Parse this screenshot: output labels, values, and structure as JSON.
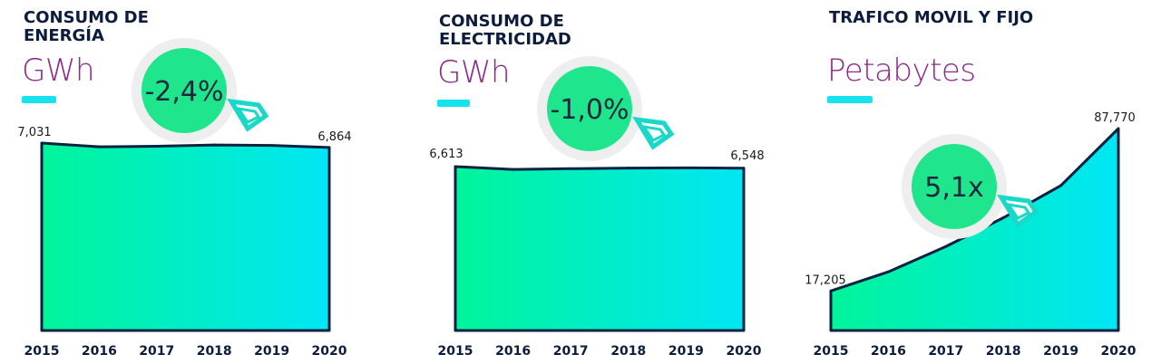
{
  "chart_data": [
    {
      "type": "area",
      "title": "CONSUMO DE\nENERGÍA",
      "ylabel": "GWh",
      "x": [
        "2015",
        "2016",
        "2017",
        "2018",
        "2019",
        "2020"
      ],
      "values": [
        7031,
        6890,
        6910,
        6960,
        6940,
        6864
      ],
      "data_labels": [
        "7,031",
        "",
        "",
        "",
        "",
        "6,864"
      ],
      "badge": "-2,4%",
      "ylim": [
        0,
        7031
      ],
      "grid": false
    },
    {
      "type": "area",
      "title": "CONSUMO DE\nELECTRICIDAD",
      "ylabel": "GWh",
      "x": [
        "2015",
        "2016",
        "2017",
        "2018",
        "2019",
        "2020"
      ],
      "values": [
        6613,
        6500,
        6530,
        6555,
        6565,
        6548
      ],
      "data_labels": [
        "6,613",
        "",
        "",
        "",
        "",
        "6,548"
      ],
      "badge": "-1,0%",
      "ylim": [
        0,
        6613
      ],
      "grid": false
    },
    {
      "type": "area",
      "title": "TRAFICO MOVIL Y FIJO",
      "ylabel": "Petabytes",
      "x": [
        "2015",
        "2016",
        "2017",
        "2018",
        "2019",
        "2020"
      ],
      "values": [
        17205,
        25500,
        36500,
        49000,
        63000,
        87770
      ],
      "data_labels": [
        "17,205",
        "",
        "",
        "",
        "",
        "87,770"
      ],
      "badge": "5,1x",
      "ylim": [
        0,
        87770
      ],
      "grid": false
    }
  ],
  "colors": {
    "area_left": "#00f59a",
    "area_right": "#00e6f5",
    "outline": "#0b2340",
    "badge_fill": "#1fe58d",
    "badge_ring": "#eeeeee",
    "arrow": "#19d8c8",
    "unit_text": "#8e2a8a",
    "title_text": "#0b1c3c"
  }
}
